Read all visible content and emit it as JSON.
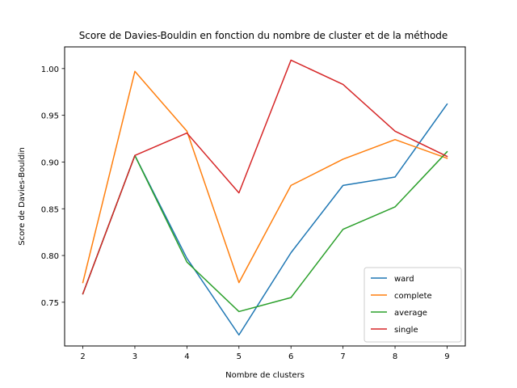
{
  "chart_data": {
    "type": "line",
    "title": "Score de Davies-Bouldin en fonction du nombre de cluster et de la méthode",
    "xlabel": "Nombre de clusters",
    "ylabel": "Score de Davies-Bouldin",
    "x": [
      2,
      3,
      4,
      5,
      6,
      7,
      8,
      9
    ],
    "xlim": [
      1.65,
      9.35
    ],
    "ylim": [
      0.7032,
      1.0232
    ],
    "xticks": [
      "2",
      "3",
      "4",
      "5",
      "6",
      "7",
      "8",
      "9"
    ],
    "yticks": [
      "0.75",
      "0.80",
      "0.85",
      "0.90",
      "0.95",
      "1.00"
    ],
    "ytick_values": [
      0.75,
      0.8,
      0.85,
      0.9,
      0.95,
      1.0
    ],
    "grid": false,
    "legend_position": "lower-right",
    "series": [
      {
        "name": "ward",
        "color": "#1f77b4",
        "values": [
          0.759,
          0.907,
          0.797,
          0.715,
          0.803,
          0.875,
          0.884,
          0.962
        ]
      },
      {
        "name": "complete",
        "color": "#ff7f0e",
        "values": [
          0.771,
          0.997,
          0.933,
          0.771,
          0.875,
          0.903,
          0.924,
          0.904
        ]
      },
      {
        "name": "average",
        "color": "#2ca02c",
        "values": [
          0.759,
          0.907,
          0.793,
          0.74,
          0.755,
          0.828,
          0.852,
          0.911
        ]
      },
      {
        "name": "single",
        "color": "#d62728",
        "values": [
          0.759,
          0.907,
          0.931,
          0.867,
          1.009,
          0.983,
          0.933,
          0.906
        ]
      }
    ]
  }
}
